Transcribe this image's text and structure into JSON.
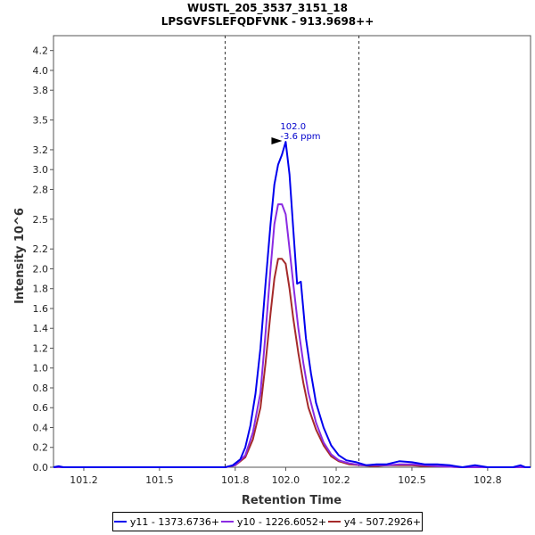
{
  "chart_data": {
    "type": "line",
    "title": "WUSTL_205_3537_3151_18",
    "subtitle": "LPSGVFSLEFQDFVNK - 913.9698++",
    "xlabel": "Retention Time",
    "ylabel": "Intensity 10^6",
    "xlim": [
      101.08,
      102.97
    ],
    "ylim": [
      0,
      4.35
    ],
    "x_ticks": [
      "101.2",
      "101.5",
      "101.8",
      "102.0",
      "102.2",
      "102.5",
      "102.8"
    ],
    "x_tick_values": [
      101.2,
      101.5,
      101.8,
      102.0,
      102.2,
      102.5,
      102.8
    ],
    "y_ticks": [
      "0.0",
      "0.2",
      "0.4",
      "0.6",
      "0.8",
      "1.0",
      "1.2",
      "1.4",
      "1.6",
      "1.8",
      "2.0",
      "2.2",
      "2.5",
      "2.8",
      "3.0",
      "3.2",
      "3.5",
      "3.8",
      "4.0",
      "4.2"
    ],
    "y_tick_values": [
      0.0,
      0.2,
      0.4,
      0.6,
      0.8,
      1.0,
      1.2,
      1.4,
      1.6,
      1.8,
      2.0,
      2.2,
      2.5,
      2.8,
      3.0,
      3.2,
      3.5,
      3.8,
      4.0,
      4.2
    ],
    "vlines": [
      101.76,
      102.29
    ],
    "annotation": {
      "x": 102.0,
      "y": 3.28,
      "line1": "102.0",
      "line2": "-3.6 ppm"
    },
    "grid": false,
    "legend_position": "bottom",
    "series": [
      {
        "name": "y11 - 1373.6736+",
        "color": "#0000ee",
        "x": [
          101.08,
          101.1,
          101.12,
          101.5,
          101.76,
          101.79,
          101.82,
          101.84,
          101.86,
          101.88,
          101.9,
          101.92,
          101.94,
          101.955,
          101.97,
          101.985,
          102.0,
          102.015,
          102.03,
          102.045,
          102.06,
          102.08,
          102.1,
          102.12,
          102.15,
          102.18,
          102.21,
          102.24,
          102.28,
          102.32,
          102.36,
          102.4,
          102.45,
          102.5,
          102.55,
          102.6,
          102.65,
          102.7,
          102.75,
          102.8,
          102.85,
          102.9,
          102.93,
          102.95,
          102.97
        ],
        "values": [
          0.0,
          0.01,
          0.0,
          0.0,
          0.0,
          0.02,
          0.08,
          0.2,
          0.42,
          0.74,
          1.2,
          1.85,
          2.45,
          2.85,
          3.05,
          3.15,
          3.28,
          2.95,
          2.4,
          1.85,
          1.87,
          1.3,
          0.95,
          0.65,
          0.4,
          0.22,
          0.12,
          0.07,
          0.05,
          0.02,
          0.03,
          0.03,
          0.06,
          0.05,
          0.03,
          0.03,
          0.02,
          0.0,
          0.02,
          0.0,
          0.0,
          0.0,
          0.02,
          0.0,
          0.0
        ]
      },
      {
        "name": "y10 - 1226.6052+",
        "color": "#8a2be2",
        "x": [
          101.08,
          101.5,
          101.76,
          101.8,
          101.84,
          101.87,
          101.9,
          101.92,
          101.94,
          101.955,
          101.97,
          101.985,
          102.0,
          102.015,
          102.03,
          102.05,
          102.07,
          102.09,
          102.12,
          102.15,
          102.18,
          102.21,
          102.25,
          102.3,
          102.35,
          102.4,
          102.45,
          102.5,
          102.55,
          102.6,
          102.7,
          102.8,
          102.9,
          102.95,
          102.97
        ],
        "values": [
          0.0,
          0.0,
          0.0,
          0.02,
          0.12,
          0.35,
          0.75,
          1.35,
          2.0,
          2.45,
          2.65,
          2.65,
          2.55,
          2.2,
          1.85,
          1.4,
          1.05,
          0.75,
          0.45,
          0.25,
          0.13,
          0.07,
          0.04,
          0.02,
          0.02,
          0.02,
          0.03,
          0.03,
          0.02,
          0.01,
          0.0,
          0.0,
          0.0,
          0.0,
          0.0
        ]
      },
      {
        "name": "y4 - 507.2926+",
        "color": "#a52a2a",
        "x": [
          101.08,
          101.5,
          101.76,
          101.8,
          101.84,
          101.87,
          101.9,
          101.92,
          101.94,
          101.955,
          101.97,
          101.985,
          102.0,
          102.015,
          102.03,
          102.05,
          102.07,
          102.09,
          102.12,
          102.15,
          102.18,
          102.21,
          102.25,
          102.3,
          102.35,
          102.4,
          102.45,
          102.5,
          102.55,
          102.6,
          102.7,
          102.8,
          102.9,
          102.97
        ],
        "values": [
          0.0,
          0.0,
          0.0,
          0.02,
          0.1,
          0.28,
          0.6,
          1.05,
          1.55,
          1.9,
          2.1,
          2.1,
          2.05,
          1.8,
          1.5,
          1.15,
          0.85,
          0.6,
          0.38,
          0.22,
          0.11,
          0.06,
          0.03,
          0.02,
          0.01,
          0.02,
          0.02,
          0.02,
          0.01,
          0.01,
          0.0,
          0.0,
          0.0,
          0.0
        ]
      }
    ]
  }
}
